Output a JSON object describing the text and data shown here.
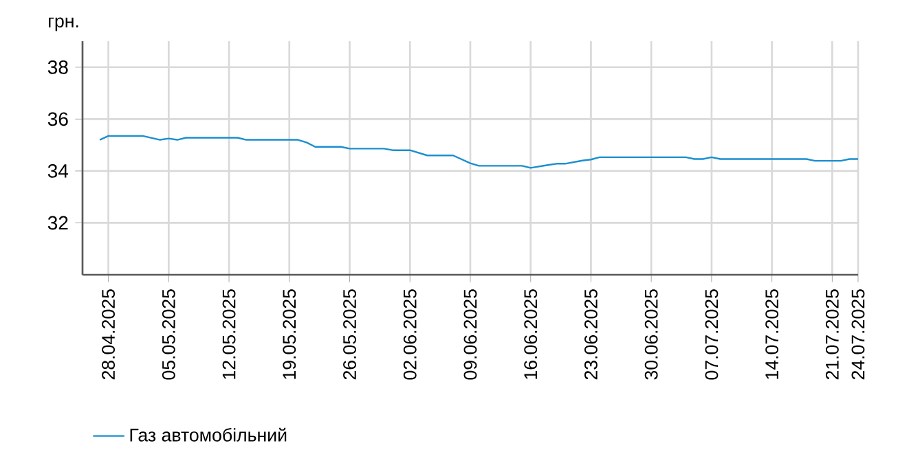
{
  "chart_data": {
    "type": "line",
    "ylabel": "грн.",
    "x": [
      "2025-04-27",
      "2025-04-28",
      "2025-05-02",
      "2025-05-04",
      "2025-05-05",
      "2025-05-06",
      "2025-05-07",
      "2025-05-13",
      "2025-05-14",
      "2025-05-20",
      "2025-05-21",
      "2025-05-22",
      "2025-05-25",
      "2025-05-26",
      "2025-05-30",
      "2025-05-31",
      "2025-06-02",
      "2025-06-04",
      "2025-06-07",
      "2025-06-09",
      "2025-06-10",
      "2025-06-15",
      "2025-06-16",
      "2025-06-18",
      "2025-06-19",
      "2025-06-20",
      "2025-06-22",
      "2025-06-23",
      "2025-06-24",
      "2025-07-04",
      "2025-07-05",
      "2025-07-06",
      "2025-07-07",
      "2025-07-08",
      "2025-07-18",
      "2025-07-19",
      "2025-07-22",
      "2025-07-23",
      "2025-07-24"
    ],
    "series": [
      {
        "name": "Газ автомобільний",
        "color": "#1a8fd0",
        "values": [
          35.2,
          35.35,
          35.35,
          35.2,
          35.25,
          35.2,
          35.28,
          35.28,
          35.2,
          35.2,
          35.1,
          34.93,
          34.93,
          34.86,
          34.86,
          34.8,
          34.8,
          34.6,
          34.6,
          34.3,
          34.2,
          34.2,
          34.12,
          34.23,
          34.28,
          34.28,
          34.4,
          34.44,
          34.53,
          34.53,
          34.46,
          34.46,
          34.53,
          34.46,
          34.46,
          34.39,
          34.39,
          34.46,
          34.46
        ]
      }
    ],
    "xlim": [
      "2025-04-25",
      "2025-07-24"
    ],
    "xticks": [
      {
        "value": "2025-04-28",
        "label": "28.04.2025"
      },
      {
        "value": "2025-05-05",
        "label": "05.05.2025"
      },
      {
        "value": "2025-05-12",
        "label": "12.05.2025"
      },
      {
        "value": "2025-05-19",
        "label": "19.05.2025"
      },
      {
        "value": "2025-05-26",
        "label": "26.05.2025"
      },
      {
        "value": "2025-06-02",
        "label": "02.06.2025"
      },
      {
        "value": "2025-06-09",
        "label": "09.06.2025"
      },
      {
        "value": "2025-06-16",
        "label": "16.06.2025"
      },
      {
        "value": "2025-06-23",
        "label": "23.06.2025"
      },
      {
        "value": "2025-06-30",
        "label": "30.06.2025"
      },
      {
        "value": "2025-07-07",
        "label": "07.07.2025"
      },
      {
        "value": "2025-07-14",
        "label": "14.07.2025"
      },
      {
        "value": "2025-07-21",
        "label": "21.07.2025"
      },
      {
        "value": "2025-07-24",
        "label": "24.07.2025"
      }
    ],
    "ylim": [
      30,
      39
    ],
    "yticks": [
      32,
      34,
      36,
      38
    ],
    "grid": true,
    "legend": "bottom",
    "marker": "none",
    "line_style": "solid"
  }
}
